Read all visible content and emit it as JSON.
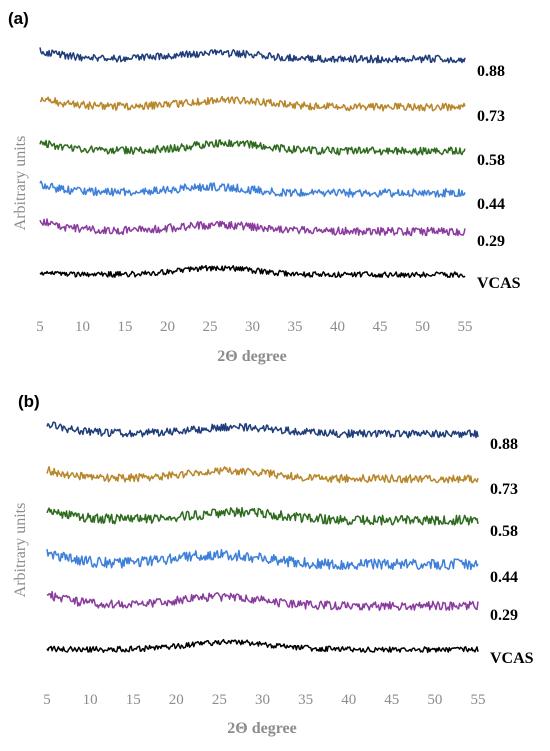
{
  "chart_data": [
    {
      "panel_label": "(a)",
      "type": "line",
      "xlabel": "2Θ degree",
      "ylabel": "Arbitrary units",
      "xlim": [
        5,
        55
      ],
      "xticks": [
        "5",
        "10",
        "15",
        "20",
        "25",
        "30",
        "35",
        "40",
        "45",
        "50",
        "55"
      ],
      "series": [
        {
          "name": "0.88",
          "color": "#1f3d7a",
          "start": 0.86,
          "end": 0.62,
          "hump": 0.16,
          "hump_center": 26,
          "hump_width": 7,
          "noise": 0.1
        },
        {
          "name": "0.73",
          "color": "#b8862b",
          "start": 0.8,
          "end": 0.55,
          "hump": 0.18,
          "hump_center": 27,
          "hump_width": 7,
          "noise": 0.1
        },
        {
          "name": "0.58",
          "color": "#2e6b1f",
          "start": 0.78,
          "end": 0.54,
          "hump": 0.2,
          "hump_center": 27,
          "hump_width": 6,
          "noise": 0.1
        },
        {
          "name": "0.44",
          "color": "#3d7fd9",
          "start": 0.8,
          "end": 0.6,
          "hump": 0.14,
          "hump_center": 25,
          "hump_width": 6,
          "noise": 0.1
        },
        {
          "name": "0.29",
          "color": "#8a3c9e",
          "start": 0.82,
          "end": 0.55,
          "hump": 0.16,
          "hump_center": 26,
          "hump_width": 7,
          "noise": 0.1
        },
        {
          "name": "VCAS",
          "color": "#000000",
          "start": 0.58,
          "end": 0.55,
          "hump": 0.24,
          "hump_center": 26,
          "hump_width": 6,
          "noise": 0.1
        }
      ]
    },
    {
      "panel_label": "(b)",
      "type": "line",
      "xlabel": "2Θ degree",
      "ylabel": "Arbitrary units",
      "xlim": [
        5,
        55
      ],
      "xticks": [
        "5",
        "10",
        "15",
        "20",
        "25",
        "30",
        "35",
        "40",
        "45",
        "50",
        "55"
      ],
      "series": [
        {
          "name": "0.88",
          "color": "#1f3d7a",
          "start": 0.86,
          "end": 0.58,
          "hump": 0.18,
          "hump_center": 27,
          "hump_width": 7,
          "noise": 0.1
        },
        {
          "name": "0.73",
          "color": "#b8862b",
          "start": 0.8,
          "end": 0.58,
          "hump": 0.2,
          "hump_center": 26,
          "hump_width": 7,
          "noise": 0.1
        },
        {
          "name": "0.58",
          "color": "#2e6b1f",
          "start": 0.82,
          "end": 0.58,
          "hump": 0.16,
          "hump_center": 27,
          "hump_width": 7,
          "noise": 0.1
        },
        {
          "name": "0.44",
          "color": "#3d7fd9",
          "start": 0.84,
          "end": 0.6,
          "hump": 0.18,
          "hump_center": 25,
          "hump_width": 7,
          "noise": 0.1
        },
        {
          "name": "0.29",
          "color": "#8a3c9e",
          "start": 0.82,
          "end": 0.55,
          "hump": 0.2,
          "hump_center": 25,
          "hump_width": 7,
          "noise": 0.1
        },
        {
          "name": "VCAS",
          "color": "#000000",
          "start": 0.58,
          "end": 0.55,
          "hump": 0.26,
          "hump_center": 26,
          "hump_width": 7,
          "noise": 0.1
        }
      ]
    }
  ]
}
